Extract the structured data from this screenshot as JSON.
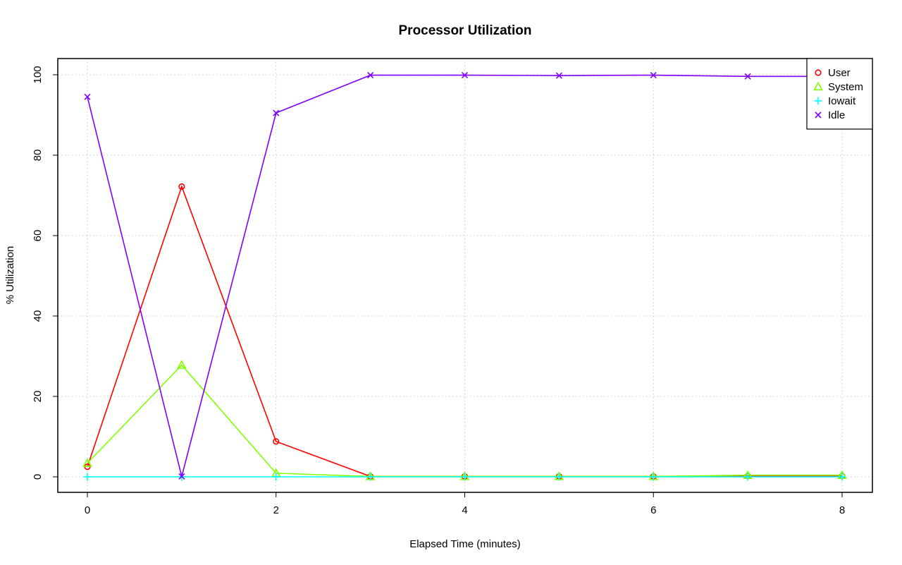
{
  "chart_data": {
    "type": "line",
    "title": "Processor Utilization",
    "xlabel": "Elapsed Time (minutes)",
    "ylabel": "% Utilization",
    "x": [
      0,
      1,
      2,
      3,
      4,
      5,
      6,
      7,
      8
    ],
    "xlim": [
      0,
      8
    ],
    "ylim": [
      0,
      100
    ],
    "xticks": [
      0,
      2,
      4,
      6,
      8
    ],
    "yticks": [
      0,
      20,
      40,
      60,
      80,
      100
    ],
    "grid": true,
    "legend_position": "top-right",
    "series": [
      {
        "name": "User",
        "color": "#ff0000",
        "marker": "circle",
        "values": [
          2.5,
          72.2,
          8.8,
          0.1,
          0.1,
          0.1,
          0.1,
          0.2,
          0.2
        ]
      },
      {
        "name": "System",
        "color": "#80ff00",
        "marker": "triangle",
        "values": [
          3.4,
          27.8,
          0.9,
          0.1,
          0.1,
          0.1,
          0.1,
          0.4,
          0.4
        ]
      },
      {
        "name": "Iowait",
        "color": "#00ffff",
        "marker": "plus",
        "values": [
          0.0,
          0.0,
          0.0,
          0.0,
          0.0,
          0.0,
          0.0,
          0.0,
          0.0
        ]
      },
      {
        "name": "Idle",
        "color": "#8000ff",
        "marker": "cross",
        "values": [
          94.5,
          0.1,
          90.5,
          99.9,
          99.9,
          99.8,
          99.9,
          99.6,
          99.6
        ]
      }
    ]
  }
}
